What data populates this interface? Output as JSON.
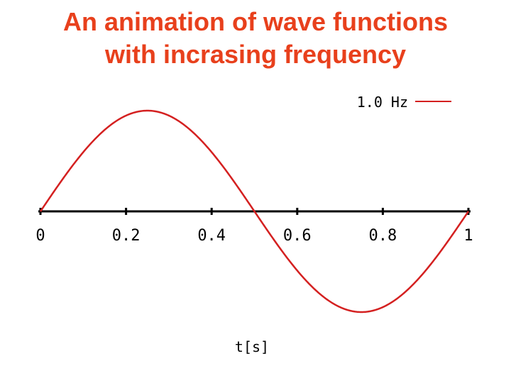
{
  "title_lines": [
    "An animation of wave functions",
    "with incrasing frequency"
  ],
  "colors": {
    "title": "#e8401c",
    "wave": "#d42020",
    "axis": "#000000"
  },
  "chart_data": {
    "type": "line",
    "title": "An animation of wave functions with incrasing frequency",
    "xlabel": "t[s]",
    "ylabel": "",
    "xlim": [
      0,
      1
    ],
    "ylim": [
      -1.05,
      1.05
    ],
    "xticks": [
      0,
      0.2,
      0.4,
      0.6,
      0.8,
      1
    ],
    "xtick_labels": [
      "0",
      "0.2",
      "0.4",
      "0.6",
      "0.8",
      "1"
    ],
    "grid": false,
    "legend_position": "top-right",
    "series": [
      {
        "name": "1.0 Hz",
        "function": "sin(2*pi*f*t)",
        "frequency": 1.0,
        "amplitude": 1.0,
        "color": "#d42020"
      }
    ]
  }
}
